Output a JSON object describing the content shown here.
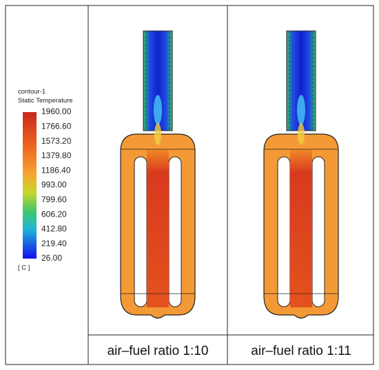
{
  "legend": {
    "title": "contour-1",
    "subtitle": "Static Temperature",
    "unit": "[ C ]",
    "labels": [
      "1960.00",
      "1766.60",
      "1573.20",
      "1379.80",
      "1186.40",
      "993.00",
      "799.60",
      "606.20",
      "412.80",
      "219.40",
      "26.00"
    ]
  },
  "panels": [
    {
      "caption": "air–fuel ratio 1:10"
    },
    {
      "caption": "air–fuel ratio 1:11"
    }
  ]
}
